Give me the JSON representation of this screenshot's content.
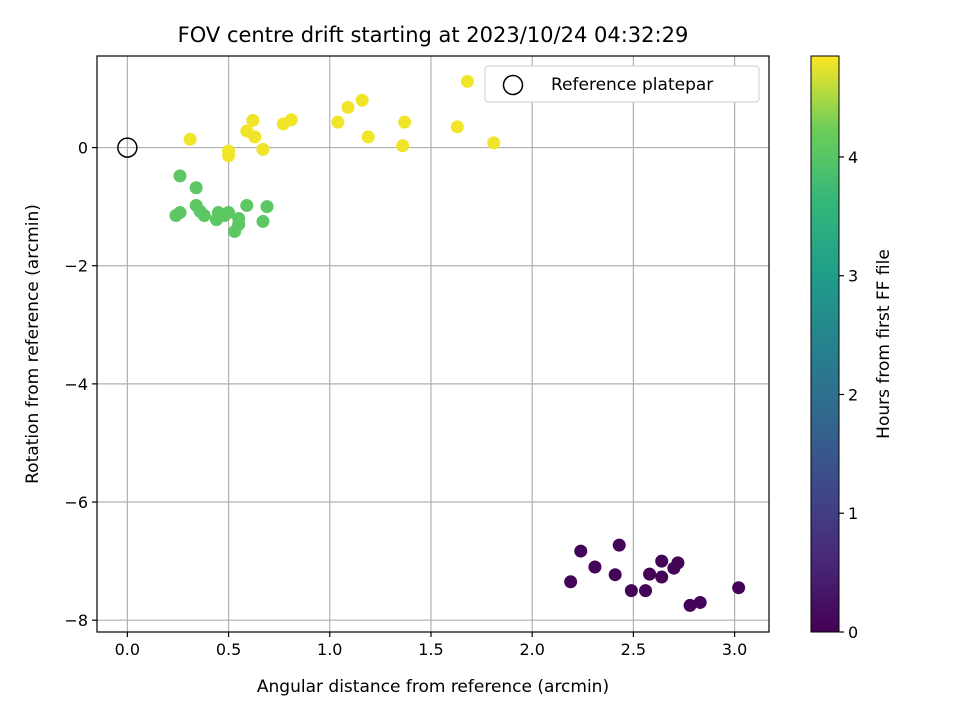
{
  "chart_data": {
    "type": "scatter",
    "title": "FOV centre drift starting at 2023/10/24 04:32:29",
    "xlabel": "Angular distance from reference (arcmin)",
    "ylabel": "Rotation from reference (arcmin)",
    "xlim": [
      -0.15,
      3.17
    ],
    "ylim": [
      -8.2,
      1.55
    ],
    "xticks": [
      0.0,
      0.5,
      1.0,
      1.5,
      2.0,
      2.5,
      3.0
    ],
    "xtick_labels": [
      "0.0",
      "0.5",
      "1.0",
      "1.5",
      "2.0",
      "2.5",
      "3.0"
    ],
    "yticks": [
      0,
      -2,
      -4,
      -6,
      -8
    ],
    "ytick_labels": [
      "0",
      "−2",
      "−4",
      "−6",
      "−8"
    ],
    "grid": true,
    "legend": {
      "entries": [
        "Reference platepar"
      ],
      "placement": "top-right"
    },
    "reference_point": {
      "x": 0,
      "y": 0,
      "marker": "open-circle",
      "label": "Reference platepar"
    },
    "colorbar": {
      "label": "Hours from first FF file",
      "colormap": "viridis",
      "range": [
        0,
        4.85
      ],
      "ticks": [
        0,
        1,
        2,
        3,
        4
      ],
      "tick_labels": [
        "0",
        "1",
        "2",
        "3",
        "4"
      ]
    },
    "points": [
      {
        "x": 2.19,
        "y": -7.35,
        "c": 0.05
      },
      {
        "x": 2.24,
        "y": -6.83,
        "c": 0.05
      },
      {
        "x": 2.31,
        "y": -7.1,
        "c": 0.05
      },
      {
        "x": 2.41,
        "y": -7.23,
        "c": 0.05
      },
      {
        "x": 2.43,
        "y": -6.73,
        "c": 0.05
      },
      {
        "x": 2.49,
        "y": -7.5,
        "c": 0.05
      },
      {
        "x": 2.56,
        "y": -7.5,
        "c": 0.05
      },
      {
        "x": 2.58,
        "y": -7.22,
        "c": 0.05
      },
      {
        "x": 2.64,
        "y": -7.0,
        "c": 0.05
      },
      {
        "x": 2.64,
        "y": -7.27,
        "c": 0.05
      },
      {
        "x": 2.7,
        "y": -7.12,
        "c": 0.05
      },
      {
        "x": 2.72,
        "y": -7.03,
        "c": 0.05
      },
      {
        "x": 2.78,
        "y": -7.75,
        "c": 0.05
      },
      {
        "x": 2.83,
        "y": -7.7,
        "c": 0.05
      },
      {
        "x": 3.02,
        "y": -7.45,
        "c": 0.05
      },
      {
        "x": 0.26,
        "y": -0.48,
        "c": 4.05
      },
      {
        "x": 0.34,
        "y": -0.68,
        "c": 4.05
      },
      {
        "x": 0.26,
        "y": -1.1,
        "c": 4.05
      },
      {
        "x": 0.24,
        "y": -1.15,
        "c": 4.05
      },
      {
        "x": 0.34,
        "y": -0.98,
        "c": 4.05
      },
      {
        "x": 0.36,
        "y": -1.08,
        "c": 4.05
      },
      {
        "x": 0.38,
        "y": -1.15,
        "c": 4.05
      },
      {
        "x": 0.44,
        "y": -1.22,
        "c": 4.05
      },
      {
        "x": 0.45,
        "y": -1.1,
        "c": 4.05
      },
      {
        "x": 0.48,
        "y": -1.15,
        "c": 4.05
      },
      {
        "x": 0.5,
        "y": -1.1,
        "c": 4.05
      },
      {
        "x": 0.53,
        "y": -1.42,
        "c": 4.05
      },
      {
        "x": 0.55,
        "y": -1.2,
        "c": 4.05
      },
      {
        "x": 0.55,
        "y": -1.3,
        "c": 4.05
      },
      {
        "x": 0.59,
        "y": -0.98,
        "c": 4.05
      },
      {
        "x": 0.67,
        "y": -1.25,
        "c": 4.05
      },
      {
        "x": 0.69,
        "y": -1.0,
        "c": 4.05
      },
      {
        "x": 0.31,
        "y": 0.14,
        "c": 4.8
      },
      {
        "x": 0.5,
        "y": -0.06,
        "c": 4.8
      },
      {
        "x": 0.5,
        "y": -0.14,
        "c": 4.8
      },
      {
        "x": 0.59,
        "y": 0.28,
        "c": 4.8
      },
      {
        "x": 0.62,
        "y": 0.46,
        "c": 4.8
      },
      {
        "x": 0.63,
        "y": 0.18,
        "c": 4.8
      },
      {
        "x": 0.67,
        "y": -0.03,
        "c": 4.8
      },
      {
        "x": 0.77,
        "y": 0.4,
        "c": 4.8
      },
      {
        "x": 0.81,
        "y": 0.47,
        "c": 4.8
      },
      {
        "x": 1.04,
        "y": 0.43,
        "c": 4.8
      },
      {
        "x": 1.09,
        "y": 0.68,
        "c": 4.8
      },
      {
        "x": 1.16,
        "y": 0.8,
        "c": 4.8
      },
      {
        "x": 1.19,
        "y": 0.18,
        "c": 4.8
      },
      {
        "x": 1.36,
        "y": 0.03,
        "c": 4.8
      },
      {
        "x": 1.37,
        "y": 0.43,
        "c": 4.8
      },
      {
        "x": 1.63,
        "y": 0.35,
        "c": 4.8
      },
      {
        "x": 1.68,
        "y": 1.12,
        "c": 4.8
      },
      {
        "x": 1.81,
        "y": 0.08,
        "c": 4.8
      }
    ]
  }
}
